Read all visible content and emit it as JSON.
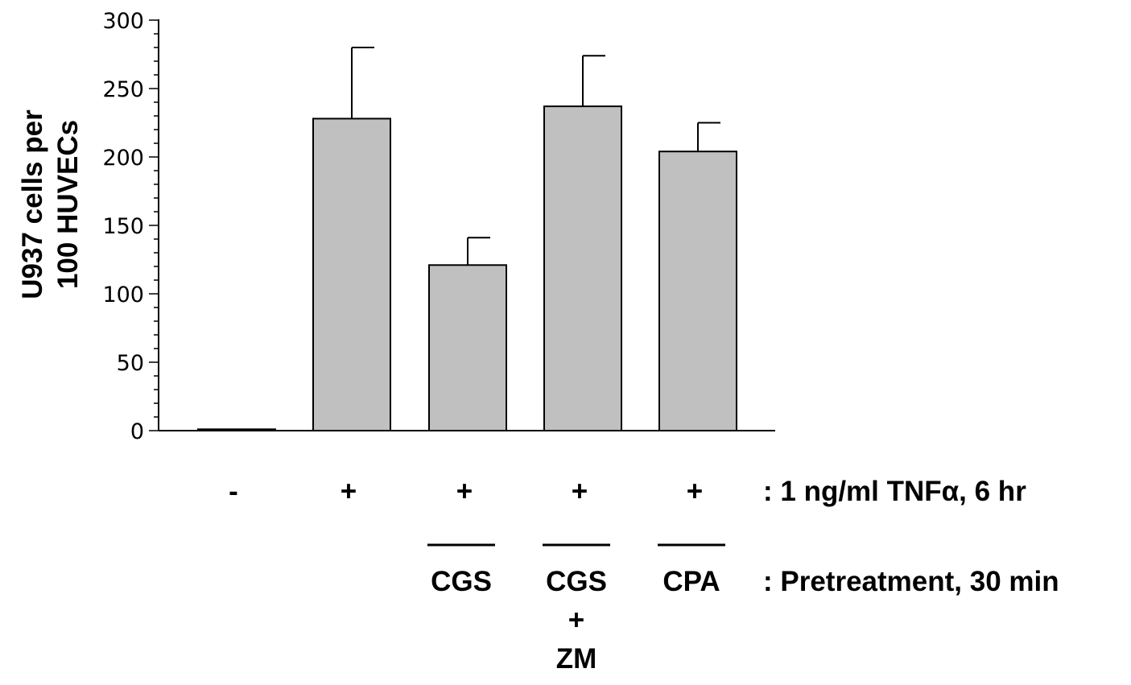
{
  "chart_data": {
    "type": "bar",
    "ylabel_lines": [
      "U937 cells per",
      "100 HUVECs"
    ],
    "ylim": [
      0,
      300
    ],
    "yticks": [
      "0",
      "50",
      "100",
      "150",
      "200",
      "250",
      "300"
    ],
    "grid": false,
    "values": [
      1,
      228,
      121,
      237,
      204
    ],
    "error_upper": [
      1,
      280,
      141,
      274,
      225
    ],
    "bar_color": "#c0c0c0",
    "tnf_row": {
      "marks": [
        "-",
        "+",
        "+",
        "+",
        "+"
      ],
      "label": ": 1 ng/ml TNFα, 6 hr"
    },
    "pretreatment_row": {
      "agents": [
        "",
        "",
        "CGS",
        "CGS",
        "CPA"
      ],
      "extra_lines": [
        [],
        [],
        [],
        [
          "+",
          "ZM"
        ],
        []
      ],
      "label": ": Pretreatment, 30 min"
    }
  }
}
